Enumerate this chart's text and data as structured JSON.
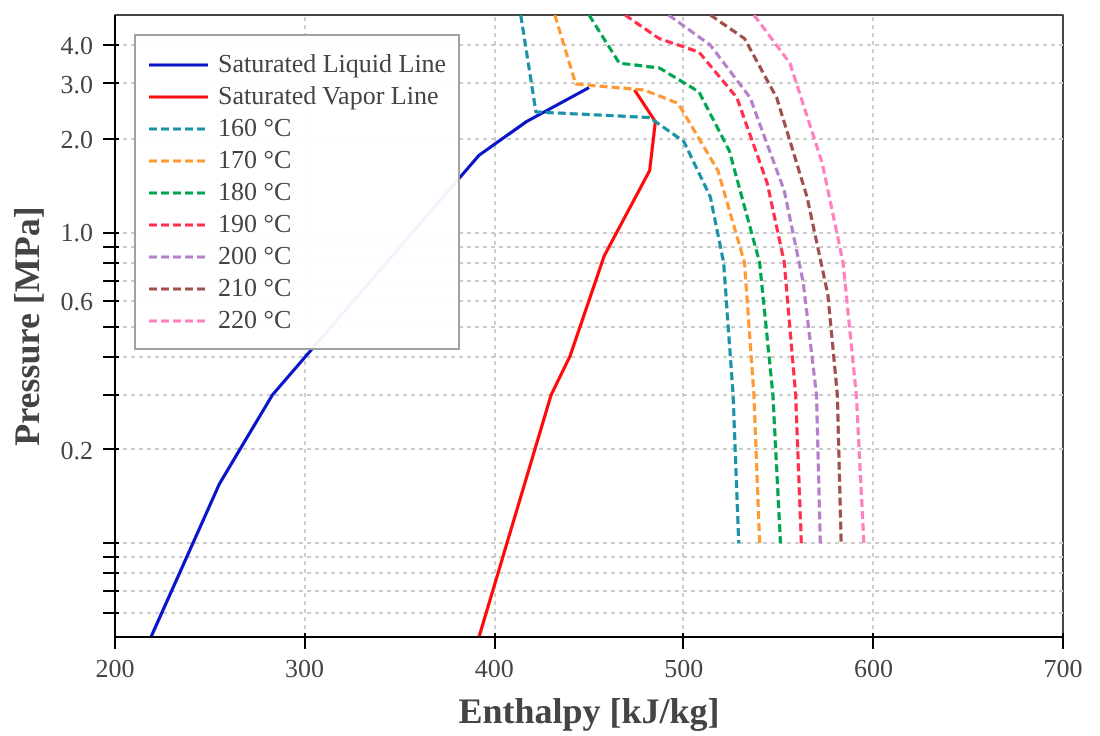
{
  "chart_data": {
    "type": "line",
    "xlabel": "Enthalpy [kJ/kg]",
    "ylabel": "Pressure [MPa]",
    "log": "y",
    "grid": true,
    "legend": "top left",
    "xlim": [
      200,
      700
    ],
    "ylim": [
      0.05,
      5
    ],
    "xticks": [
      200,
      300,
      400,
      500,
      600,
      700
    ],
    "yticks": [
      {
        "value": 0.06,
        "label": null
      },
      {
        "value": 0.07,
        "label": null
      },
      {
        "value": 0.08,
        "label": null
      },
      {
        "value": 0.09,
        "label": null
      },
      {
        "value": 0.1,
        "label": null
      },
      0.2,
      {
        "value": 0.3,
        "label": null
      },
      {
        "value": 0.4,
        "label": null
      },
      {
        "value": 0.5,
        "label": null
      },
      0.6,
      {
        "value": 0.7,
        "label": null
      },
      {
        "value": 0.8,
        "label": null
      },
      {
        "value": 0.9,
        "label": null
      },
      {
        "value": 1,
        "label": "1.0"
      },
      {
        "value": 2,
        "label": "2.0"
      },
      {
        "value": 3,
        "label": "3.0"
      },
      {
        "value": 4,
        "label": "4.0"
      }
    ],
    "series": [
      {
        "name": "Saturated Liquid Line",
        "color": "#0a14c8",
        "line_style": "solid",
        "x": [
          219,
          255,
          283,
          392,
          417,
          450
        ],
        "values": [
          0.05,
          0.155,
          0.3,
          1.77,
          2.27,
          2.92
        ]
      },
      {
        "name": "Saturated Vapor Line",
        "color": "#ff0a0a",
        "line_style": "solid",
        "x": [
          474,
          485,
          482,
          458,
          440,
          430,
          392
        ],
        "values": [
          2.87,
          2.27,
          1.58,
          0.84,
          0.4,
          0.3,
          0.05
        ]
      },
      {
        "name": "160 °C",
        "color": "#1a93a8",
        "line_style": "dashed",
        "x": [
          414,
          422,
          482,
          500,
          514,
          521,
          526,
          529
        ],
        "values": [
          5.0,
          2.44,
          2.34,
          1.96,
          1.3,
          0.8,
          0.3,
          0.1
        ]
      },
      {
        "name": "170 °C",
        "color": "#ff9933",
        "line_style": "dashed",
        "x": [
          432,
          443,
          479,
          497,
          518,
          532,
          537,
          540
        ],
        "values": [
          5.0,
          3.0,
          2.87,
          2.6,
          1.58,
          0.8,
          0.3,
          0.1
        ]
      },
      {
        "name": "180 °C",
        "color": "#00a550",
        "line_style": "dashed",
        "x": [
          450,
          466,
          487,
          508,
          524,
          540,
          547,
          551
        ],
        "values": [
          5.0,
          3.5,
          3.38,
          2.83,
          1.83,
          0.8,
          0.3,
          0.1
        ]
      },
      {
        "name": "190 °C",
        "color": "#ff2e4d",
        "line_style": "dashed",
        "x": [
          469,
          487,
          508,
          528,
          544,
          553,
          559,
          562
        ],
        "values": [
          5.0,
          4.2,
          3.8,
          2.71,
          1.44,
          0.8,
          0.3,
          0.1
        ]
      },
      {
        "name": "200 °C",
        "color": "#b47fcc",
        "line_style": "dashed",
        "x": [
          492,
          514,
          535,
          553,
          563,
          570,
          572
        ],
        "values": [
          5.0,
          4.0,
          2.71,
          1.36,
          0.69,
          0.3,
          0.1
        ]
      },
      {
        "name": "210 °C",
        "color": "#a0504c",
        "line_style": "dashed",
        "x": [
          514,
          532,
          549,
          565,
          576,
          581,
          583
        ],
        "values": [
          5.0,
          4.2,
          2.71,
          1.3,
          0.63,
          0.3,
          0.1
        ]
      },
      {
        "name": "220 °C",
        "color": "#ff7fbf",
        "line_style": "dashed",
        "x": [
          537,
          556,
          573,
          584,
          591,
          595
        ],
        "values": [
          5.0,
          3.5,
          1.67,
          0.8,
          0.3,
          0.1
        ]
      }
    ]
  }
}
